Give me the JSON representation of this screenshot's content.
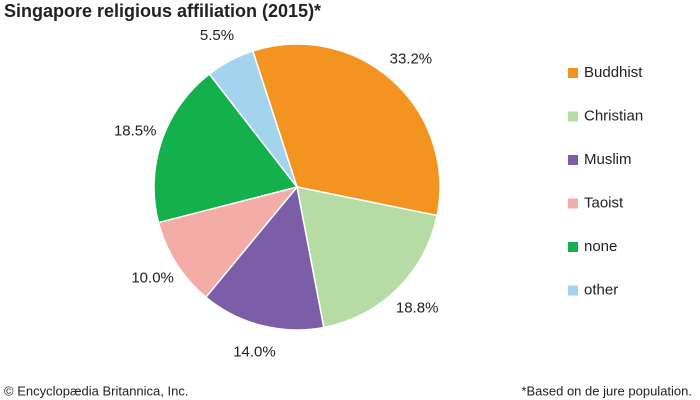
{
  "chart_data": {
    "type": "pie",
    "title": "Singapore religious affiliation (2015)*",
    "categories": [
      "Buddhist",
      "Christian",
      "Muslim",
      "Taoist",
      "none",
      "other"
    ],
    "values": [
      33.2,
      18.8,
      14.0,
      10.0,
      18.5,
      5.5
    ],
    "value_labels": [
      "33.2%",
      "18.8%",
      "14.0%",
      "10.0%",
      "18.5%",
      "5.5%"
    ],
    "colors": [
      "#f39320",
      "#b7dba4",
      "#7b5ea7",
      "#f4aca6",
      "#13b04b",
      "#a4d3ee"
    ],
    "legend": "right",
    "source": "© Encyclopædia Britannica, Inc.",
    "note": "*Based on de jure population."
  }
}
